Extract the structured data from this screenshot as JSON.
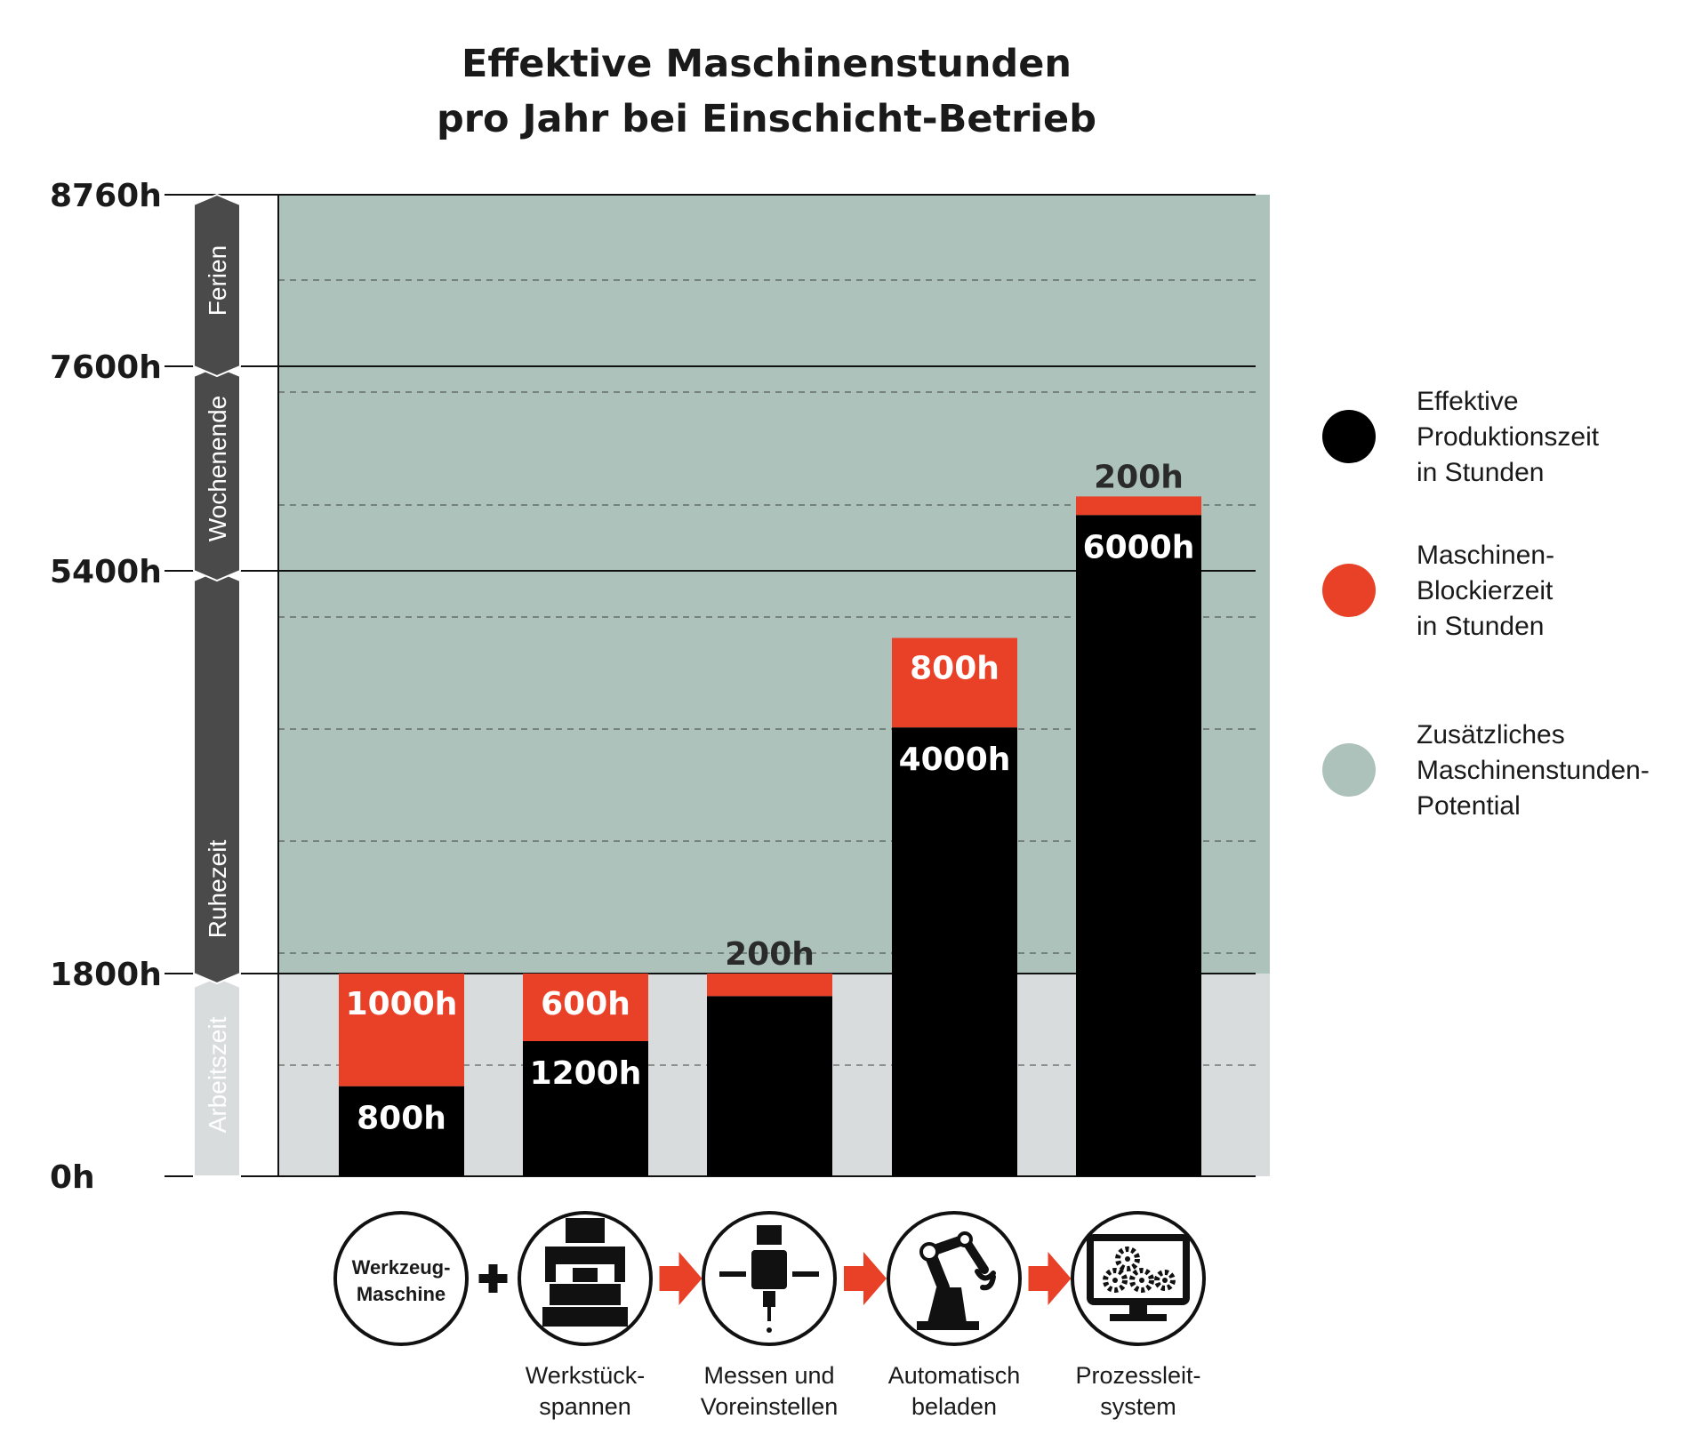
{
  "chart_data": {
    "type": "bar",
    "title": [
      "Effektive Maschinenstunden",
      "pro Jahr bei Einschicht-Betrieb"
    ],
    "y_ticks": [
      "8760h",
      "7600h",
      "5400h",
      "1800h",
      "0h"
    ],
    "y_tick_values": [
      8760,
      7600,
      5400,
      1800,
      0
    ],
    "ylim": [
      0,
      8760
    ],
    "time_bands": [
      {
        "label": "Arbeitszeit",
        "from": 0,
        "to": 1800
      },
      {
        "label": "Ruhezeit",
        "from": 1800,
        "to": 5400
      },
      {
        "label": "Wochenende",
        "from": 5400,
        "to": 7600
      },
      {
        "label": "Ferien",
        "from": 7600,
        "to": 8760
      }
    ],
    "background_regions": [
      {
        "name": "arbeitszeit",
        "from": 0,
        "to": 1800,
        "color": "#d9dcdd"
      },
      {
        "name": "potential",
        "from": 1800,
        "to": 8760,
        "color": "#adc2bb"
      }
    ],
    "bars": [
      {
        "effective": 800,
        "effective_label": "800h",
        "blocked": 1000,
        "blocked_label": "1000h",
        "label_pos": "inside"
      },
      {
        "effective": 1200,
        "effective_label": "1200h",
        "blocked": 600,
        "blocked_label": "600h",
        "label_pos": "inside"
      },
      {
        "effective": 1600,
        "effective_label": "",
        "blocked": 200,
        "blocked_label": "200h",
        "label_pos": "above"
      },
      {
        "effective": 4000,
        "effective_label": "4000h",
        "blocked": 800,
        "blocked_label": "800h",
        "label_pos": "inside"
      },
      {
        "effective": 6000,
        "effective_label": "6000h",
        "blocked": 200,
        "blocked_label": "200h",
        "label_pos": "above"
      }
    ],
    "legend": [
      {
        "lines": [
          "Effektive",
          "Produktionszeit",
          "in Stunden"
        ],
        "color": "#000000"
      },
      {
        "lines": [
          "Maschinen-",
          "Blockierzeit",
          "in Stunden"
        ],
        "color": "#e94128"
      },
      {
        "lines": [
          "Zusätzliches",
          "Maschinenstunden-",
          "Potential"
        ],
        "color": "#adc2bb"
      }
    ],
    "legend_position": "right",
    "grid": true
  },
  "steps": [
    {
      "icon": "machine-tool-icon",
      "lines": [
        "Werkzeug-",
        "Maschine"
      ],
      "caption": []
    },
    {
      "icon": "workpiece-clamp-icon",
      "lines": [],
      "caption": [
        "Werkstück-",
        "spannen"
      ]
    },
    {
      "icon": "tool-presetting-icon",
      "lines": [],
      "caption": [
        "Messen und",
        "Voreinstellen"
      ]
    },
    {
      "icon": "robot-arm-icon",
      "lines": [],
      "caption": [
        "Automatisch",
        "beladen"
      ]
    },
    {
      "icon": "monitor-gears-icon",
      "lines": [],
      "caption": [
        "Prozessleit-",
        "system"
      ]
    }
  ],
  "connectors": [
    "+",
    "arrow",
    "arrow",
    "arrow"
  ],
  "colors": {
    "effective": "#000000",
    "blocked": "#e94128",
    "potential": "#adc2bb",
    "working": "#d9dcdd",
    "band": "#4a4a4a",
    "band_light": "#d9dcdd",
    "arrow": "#e94128"
  }
}
